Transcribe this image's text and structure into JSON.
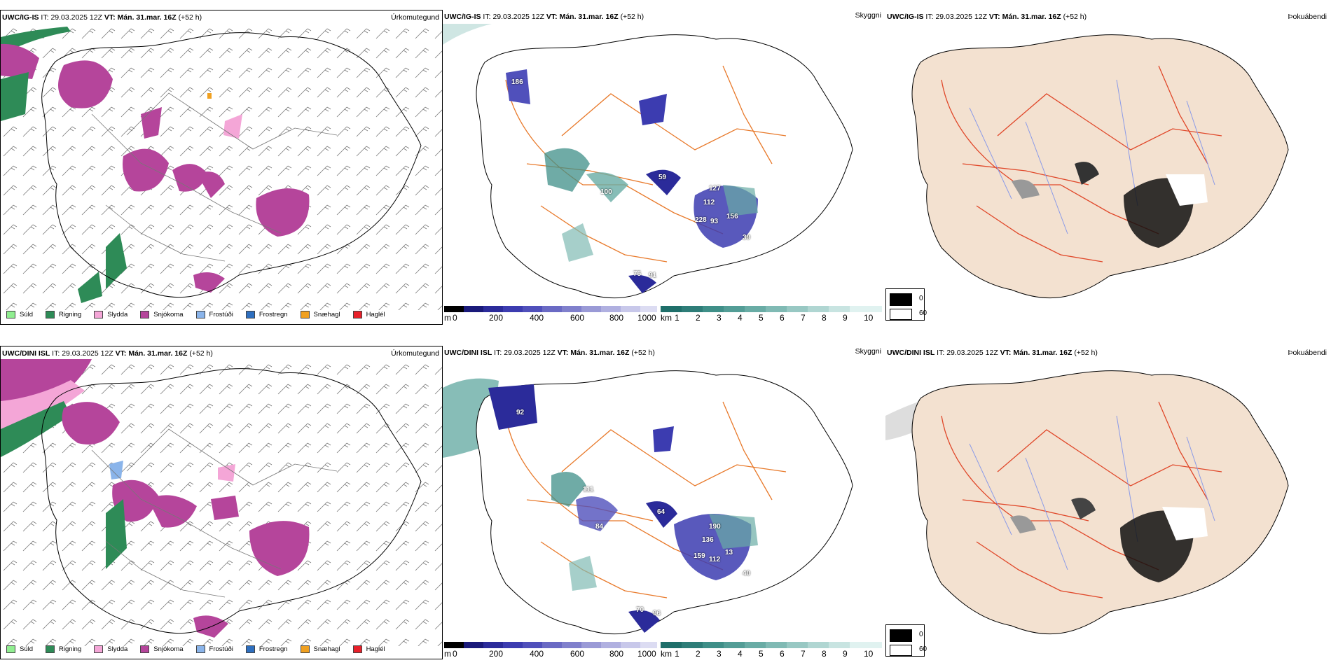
{
  "rows": [
    {
      "model": "UWC/IG-IS",
      "it_label": "IT:",
      "it_value": "29.03.2025 12Z",
      "vt_label": "VT:",
      "vt_value": "Mán. 31.mar. 16Z",
      "lead": "(+52 h)",
      "title_precip": "Úrkomutegund",
      "title_vis": "Skyggni",
      "title_fog": "Þokuábendi",
      "labels": [
        "186",
        "59",
        "100",
        "127",
        "112",
        "228",
        "93",
        "156",
        "39",
        "75",
        "91"
      ]
    },
    {
      "model": "UWC/DINI ISL",
      "it_label": "IT:",
      "it_value": "29.03.2025 12Z",
      "vt_label": "VT:",
      "vt_value": "Mán. 31.mar. 16Z",
      "lead": "(+52 h)",
      "title_precip": "Úrkomutegund",
      "title_vis": "Skyggni",
      "title_fog": "Þokuábendi",
      "labels": [
        "92",
        "111",
        "84",
        "64",
        "190",
        "136",
        "159",
        "112",
        "13",
        "40",
        "70",
        "96"
      ]
    }
  ],
  "precip_legend": [
    {
      "label": "Súld",
      "color": "#90ee90"
    },
    {
      "label": "Rigning",
      "color": "#2e8b57"
    },
    {
      "label": "Slydda",
      "color": "#f4a6d7"
    },
    {
      "label": "Snjókoma",
      "color": "#b5459b"
    },
    {
      "label": "Frostúði",
      "color": "#8ab4ea"
    },
    {
      "label": "Frostregn",
      "color": "#2e6fbf"
    },
    {
      "label": "Snæhagl",
      "color": "#f0a020"
    },
    {
      "label": "Haglél",
      "color": "#e8202a"
    }
  ],
  "cloudbase_bar": {
    "unit": "m",
    "ticks": [
      "0",
      "200",
      "400",
      "600",
      "800",
      "1000"
    ],
    "colors": [
      "#000000",
      "#1a1a7a",
      "#2b2b9a",
      "#3c3cb0",
      "#5050bb",
      "#6a6ac4",
      "#8080cc",
      "#9a9ad6",
      "#b0b0e0",
      "#c8c8ea",
      "#dcdcf2"
    ]
  },
  "vis_bar": {
    "unit": "km",
    "ticks": [
      "1",
      "2",
      "3",
      "4",
      "5",
      "6",
      "7",
      "8",
      "9",
      "10"
    ],
    "colors": [
      "#1f6f6a",
      "#2e7d78",
      "#3f8f88",
      "#539d96",
      "#69aca5",
      "#80bab4",
      "#98c8c3",
      "#b0d6d2",
      "#c8e4e1",
      "#e0f2f0"
    ]
  },
  "fog_scale": {
    "black": "0",
    "white": "60"
  },
  "colors": {
    "orange_roads": "#e8792a",
    "red_roads": "#e0482a",
    "land_beige": "#f3e1d0",
    "snow": "#b5459b",
    "rain": "#2e8b57",
    "teal": "#3f8f88",
    "navy": "#2b2b9a",
    "blue_rivers": "#8a9ae8"
  }
}
